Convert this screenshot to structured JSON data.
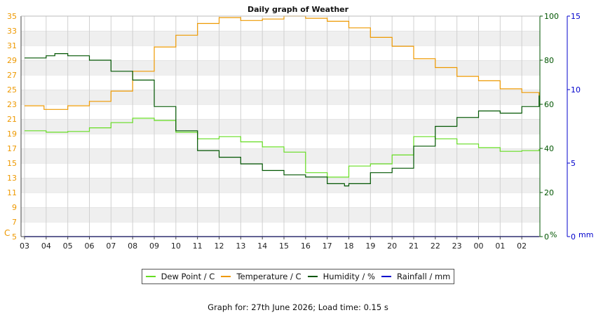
{
  "chart_data": {
    "type": "line",
    "title": "Daily graph of Weather",
    "x_labels": [
      "03",
      "04",
      "05",
      "06",
      "07",
      "08",
      "09",
      "10",
      "11",
      "12",
      "13",
      "14",
      "15",
      "16",
      "17",
      "18",
      "19",
      "20",
      "21",
      "22",
      "23",
      "00",
      "01",
      "02"
    ],
    "axes": {
      "temperature": {
        "unit": "C",
        "ticks": [
          5,
          7,
          9,
          11,
          13,
          15,
          17,
          19,
          21,
          23,
          25,
          27,
          29,
          31,
          33,
          35
        ],
        "range": [
          5,
          35
        ]
      },
      "humidity": {
        "unit": "%",
        "ticks": [
          0,
          20,
          40,
          60,
          80,
          100
        ],
        "range": [
          0,
          100
        ]
      },
      "rainfall": {
        "unit": "mm",
        "ticks": [
          0,
          5,
          10,
          15
        ],
        "range": [
          0,
          15
        ]
      }
    },
    "series": [
      {
        "name": "Dew Point / C",
        "axis": "temperature",
        "color": "#66dd22",
        "points": [
          [
            0,
            19.4
          ],
          [
            1,
            19.2
          ],
          [
            2,
            19.3
          ],
          [
            3,
            19.8
          ],
          [
            4,
            20.5
          ],
          [
            5,
            21.1
          ],
          [
            6,
            20.8
          ],
          [
            7,
            19.2
          ],
          [
            8,
            18.3
          ],
          [
            9,
            18.6
          ],
          [
            10,
            17.9
          ],
          [
            11,
            17.2
          ],
          [
            12,
            16.5
          ],
          [
            13,
            13.7
          ],
          [
            14,
            13.1
          ],
          [
            15,
            14.6
          ],
          [
            16,
            14.9
          ],
          [
            17,
            16.1
          ],
          [
            18,
            18.6
          ],
          [
            19,
            18.3
          ],
          [
            20,
            17.6
          ],
          [
            21,
            17.1
          ],
          [
            22,
            16.6
          ],
          [
            23,
            16.7
          ],
          [
            23.8,
            16.9
          ]
        ]
      },
      {
        "name": "Temperature / C",
        "axis": "temperature",
        "color": "#ee9900",
        "points": [
          [
            0,
            22.8
          ],
          [
            0.9,
            22.3
          ],
          [
            1,
            22.3
          ],
          [
            2,
            22.8
          ],
          [
            3,
            23.4
          ],
          [
            4,
            24.8
          ],
          [
            5,
            27.5
          ],
          [
            6,
            30.8
          ],
          [
            7,
            32.4
          ],
          [
            8,
            34.0
          ],
          [
            9,
            34.8
          ],
          [
            10,
            34.4
          ],
          [
            11,
            34.6
          ],
          [
            12,
            35.0
          ],
          [
            13,
            34.7
          ],
          [
            14,
            34.3
          ],
          [
            15,
            33.4
          ],
          [
            16,
            32.1
          ],
          [
            17,
            30.9
          ],
          [
            18,
            29.2
          ],
          [
            19,
            28.0
          ],
          [
            20,
            26.8
          ],
          [
            21,
            26.2
          ],
          [
            22,
            25.1
          ],
          [
            23,
            24.6
          ],
          [
            23.8,
            24.2
          ]
        ]
      },
      {
        "name": "Humidity / %",
        "axis": "humidity",
        "color": "#005500",
        "points": [
          [
            0,
            81
          ],
          [
            1,
            82
          ],
          [
            1.4,
            83
          ],
          [
            2,
            82
          ],
          [
            3,
            80
          ],
          [
            4,
            75
          ],
          [
            5,
            71
          ],
          [
            6,
            59
          ],
          [
            7,
            48
          ],
          [
            8,
            39
          ],
          [
            9,
            36
          ],
          [
            10,
            33
          ],
          [
            11,
            30
          ],
          [
            12,
            28
          ],
          [
            13,
            27
          ],
          [
            14,
            24
          ],
          [
            14.8,
            23
          ],
          [
            15,
            24
          ],
          [
            16,
            29
          ],
          [
            17,
            31
          ],
          [
            18,
            41
          ],
          [
            19,
            50
          ],
          [
            20,
            54
          ],
          [
            21,
            57
          ],
          [
            22,
            56
          ],
          [
            23,
            59
          ],
          [
            23.8,
            64
          ]
        ]
      },
      {
        "name": "Rainfall / mm",
        "axis": "rainfall",
        "color": "#0000cc",
        "points": [
          [
            0,
            0
          ],
          [
            23.8,
            0
          ]
        ]
      }
    ],
    "grid": true,
    "legend_position": "bottom"
  },
  "axis_unit_labels": {
    "left": "C",
    "humidity": "%",
    "rainfall": "mm"
  },
  "footer": "Graph for: 27th June 2026; Load time: 0.15 s"
}
